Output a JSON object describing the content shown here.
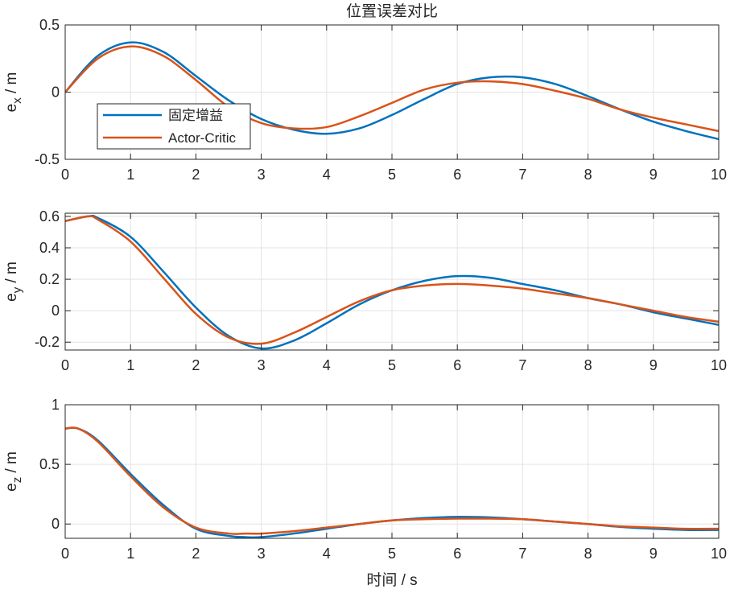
{
  "figure": {
    "title": "位置误差对比",
    "xlabel": "时间 / s"
  },
  "colors": {
    "series_1": "#0072BD",
    "series_2": "#D95319",
    "grid": "#e3e3e3",
    "axis": "#262626"
  },
  "chart_data": [
    {
      "type": "line",
      "title": "位置误差对比",
      "xlabel": "",
      "ylabel": "e_x / m",
      "ylabel_main": "e",
      "ylabel_sub": "x",
      "ylabel_rest": " / m",
      "xlim": [
        0,
        10
      ],
      "ylim": [
        -0.5,
        0.5
      ],
      "xticks": [
        0,
        1,
        2,
        3,
        4,
        5,
        6,
        7,
        8,
        9,
        10
      ],
      "xtick_labels": [
        "0",
        "1",
        "2",
        "3",
        "4",
        "5",
        "6",
        "7",
        "8",
        "9",
        "10"
      ],
      "yticks": [
        -0.5,
        0,
        0.5
      ],
      "ytick_labels": [
        "-0.5",
        "0",
        "0.5"
      ],
      "grid": true,
      "legend": {
        "position": "lower-left",
        "entries": [
          "固定增益",
          "Actor-Critic"
        ]
      },
      "x": [
        0,
        0.5,
        1,
        1.5,
        2,
        2.5,
        3,
        3.5,
        4,
        4.5,
        5,
        5.5,
        6,
        6.5,
        7,
        7.5,
        8,
        8.5,
        9,
        9.5,
        10
      ],
      "series": [
        {
          "name": "固定增益",
          "values": [
            0,
            0.27,
            0.37,
            0.3,
            0.12,
            -0.06,
            -0.2,
            -0.28,
            -0.31,
            -0.27,
            -0.17,
            -0.05,
            0.06,
            0.11,
            0.11,
            0.06,
            -0.03,
            -0.13,
            -0.22,
            -0.29,
            -0.35
          ]
        },
        {
          "name": "Actor-Critic",
          "values": [
            0,
            0.25,
            0.34,
            0.27,
            0.09,
            -0.11,
            -0.23,
            -0.27,
            -0.26,
            -0.18,
            -0.08,
            0.02,
            0.07,
            0.08,
            0.06,
            0.01,
            -0.05,
            -0.13,
            -0.19,
            -0.24,
            -0.29
          ]
        }
      ]
    },
    {
      "type": "line",
      "xlabel": "",
      "ylabel": "e_y / m",
      "ylabel_main": "e",
      "ylabel_sub": "y",
      "ylabel_rest": " / m",
      "xlim": [
        0,
        10
      ],
      "ylim": [
        -0.25,
        0.62
      ],
      "xticks": [
        0,
        1,
        2,
        3,
        4,
        5,
        6,
        7,
        8,
        9,
        10
      ],
      "xtick_labels": [
        "0",
        "1",
        "2",
        "3",
        "4",
        "5",
        "6",
        "7",
        "8",
        "9",
        "10"
      ],
      "yticks": [
        -0.2,
        0,
        0.2,
        0.4,
        0.6
      ],
      "ytick_labels": [
        "-0.2",
        "0",
        "0.2",
        "0.4",
        "0.6"
      ],
      "grid": true,
      "x": [
        0,
        0.35,
        0.5,
        1,
        1.5,
        2,
        2.5,
        3,
        3.5,
        4,
        4.5,
        5,
        5.5,
        6,
        6.5,
        7,
        7.5,
        8,
        8.5,
        9,
        9.5,
        10
      ],
      "series": [
        {
          "name": "固定增益",
          "values": [
            0.57,
            0.6,
            0.59,
            0.47,
            0.25,
            0.02,
            -0.16,
            -0.24,
            -0.19,
            -0.08,
            0.04,
            0.13,
            0.19,
            0.22,
            0.21,
            0.17,
            0.13,
            0.08,
            0.04,
            -0.01,
            -0.05,
            -0.09
          ]
        },
        {
          "name": "Actor-Critic",
          "values": [
            0.57,
            0.6,
            0.58,
            0.44,
            0.21,
            -0.02,
            -0.17,
            -0.21,
            -0.14,
            -0.04,
            0.06,
            0.13,
            0.16,
            0.17,
            0.16,
            0.14,
            0.11,
            0.08,
            0.04,
            0.0,
            -0.04,
            -0.07
          ]
        }
      ]
    },
    {
      "type": "line",
      "xlabel": "时间 / s",
      "ylabel": "e_z / m",
      "ylabel_main": "e",
      "ylabel_sub": "z",
      "ylabel_rest": " / m",
      "xlim": [
        0,
        10
      ],
      "ylim": [
        -0.12,
        1.0
      ],
      "xticks": [
        0,
        1,
        2,
        3,
        4,
        5,
        6,
        7,
        8,
        9,
        10
      ],
      "xtick_labels": [
        "0",
        "1",
        "2",
        "3",
        "4",
        "5",
        "6",
        "7",
        "8",
        "9",
        "10"
      ],
      "yticks": [
        0,
        0.5,
        1
      ],
      "ytick_labels": [
        "0",
        "0.5",
        "1"
      ],
      "grid": true,
      "x": [
        0,
        0.2,
        0.5,
        1,
        1.5,
        2,
        2.5,
        2.75,
        3,
        3.5,
        4,
        4.5,
        5,
        5.5,
        6,
        6.5,
        7,
        7.5,
        8,
        8.5,
        9,
        9.5,
        10
      ],
      "series": [
        {
          "name": "固定增益",
          "values": [
            0.8,
            0.8,
            0.7,
            0.42,
            0.16,
            -0.04,
            -0.1,
            -0.11,
            -0.11,
            -0.08,
            -0.04,
            0.0,
            0.03,
            0.05,
            0.06,
            0.055,
            0.04,
            0.02,
            0.0,
            -0.025,
            -0.04,
            -0.05,
            -0.05
          ]
        },
        {
          "name": "Actor-Critic",
          "values": [
            0.8,
            0.8,
            0.69,
            0.4,
            0.14,
            -0.03,
            -0.08,
            -0.08,
            -0.08,
            -0.06,
            -0.03,
            0.0,
            0.03,
            0.04,
            0.045,
            0.045,
            0.04,
            0.02,
            0.0,
            -0.02,
            -0.03,
            -0.04,
            -0.04
          ]
        }
      ]
    }
  ]
}
